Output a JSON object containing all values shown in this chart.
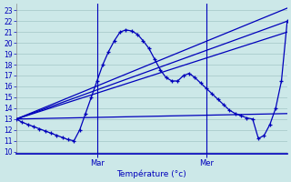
{
  "xlabel": "Température (°c)",
  "ylim": [
    9.8,
    23.6
  ],
  "xlim": [
    0,
    47
  ],
  "yticks": [
    10,
    11,
    12,
    13,
    14,
    15,
    16,
    17,
    18,
    19,
    20,
    21,
    22,
    23
  ],
  "day_markers": [
    {
      "x": 14,
      "label": "Mar"
    },
    {
      "x": 33,
      "label": "Mer"
    }
  ],
  "background_color": "#cce8e8",
  "line_color": "#0000bb",
  "grid_color": "#aacccc",
  "main_curve": {
    "x": [
      0,
      1,
      2,
      3,
      4,
      5,
      6,
      7,
      8,
      9,
      10,
      11,
      12,
      13,
      14,
      15,
      16,
      17,
      18,
      19,
      20,
      21,
      22,
      23,
      24,
      25,
      26,
      27,
      28,
      29,
      30,
      31,
      32,
      33,
      34,
      35,
      36,
      37,
      38,
      39,
      40,
      41,
      42,
      43,
      44,
      45,
      46,
      47
    ],
    "y": [
      13.0,
      12.7,
      12.5,
      12.3,
      12.1,
      11.9,
      11.7,
      11.5,
      11.3,
      11.1,
      11.0,
      12.0,
      13.5,
      15.0,
      16.5,
      18.0,
      19.2,
      20.2,
      21.0,
      21.2,
      21.1,
      20.8,
      20.2,
      19.5,
      18.5,
      17.5,
      16.8,
      16.5,
      16.5,
      17.0,
      17.2,
      16.8,
      16.3,
      15.8,
      15.3,
      14.8,
      14.3,
      13.8,
      13.5,
      13.3,
      13.1,
      13.0,
      11.2,
      11.5,
      12.5,
      14.0,
      16.5,
      22.0
    ]
  },
  "straight_lines": [
    {
      "x": [
        0,
        47
      ],
      "y": [
        13.0,
        13.5
      ]
    },
    {
      "x": [
        0,
        47
      ],
      "y": [
        13.0,
        21.0
      ]
    },
    {
      "x": [
        0,
        47
      ],
      "y": [
        13.0,
        22.0
      ]
    },
    {
      "x": [
        0,
        47
      ],
      "y": [
        13.0,
        23.2
      ]
    }
  ],
  "figsize": [
    3.2,
    2.0
  ],
  "dpi": 100
}
